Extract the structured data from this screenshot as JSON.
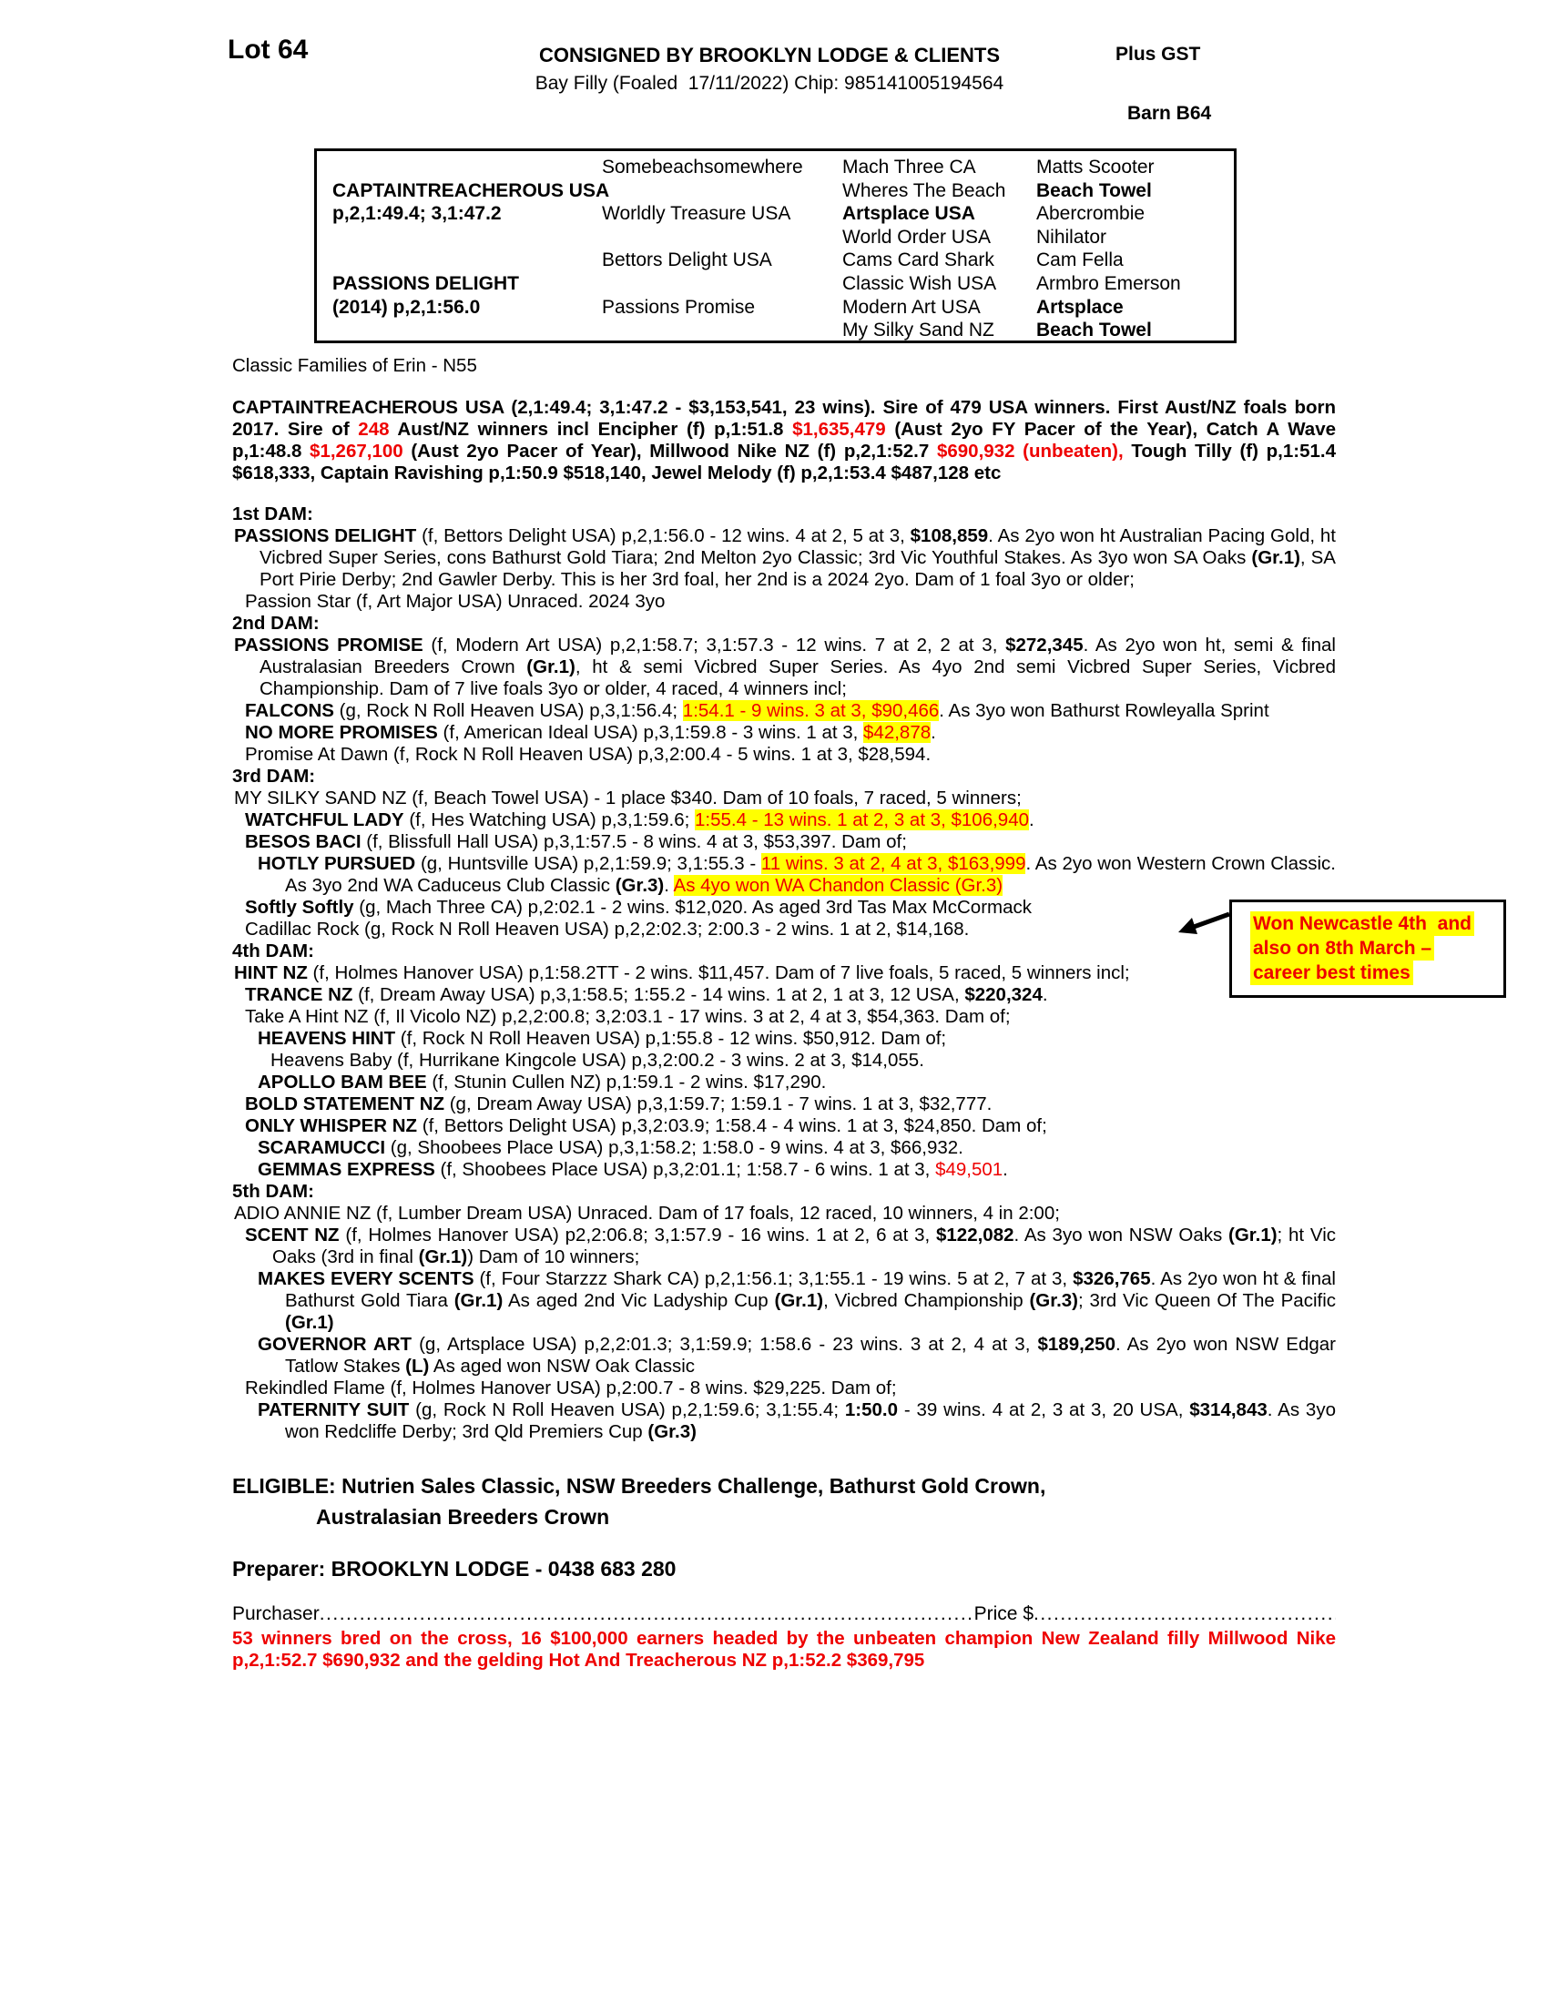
{
  "colors": {
    "red": "#ee0000",
    "highlight": "#ffff00"
  },
  "header": {
    "lot": "Lot 64",
    "consigned": "CONSIGNED BY BROOKLYN LODGE & CLIENTS",
    "plus_gst": "Plus GST",
    "subtitle": "Bay Filly (Foaled  17/11/2022) Chip: 985141005194564",
    "barn": "Barn B64"
  },
  "pedigree": {
    "rows": [
      [
        "",
        "Somebeachsomewhere",
        "Mach Three CA",
        "Matts Scooter"
      ],
      [
        {
          "t": "CAPTAINTREACHEROUS USA",
          "b": true
        },
        "",
        "Wheres The Beach",
        {
          "t": "Beach Towel",
          "b": true
        }
      ],
      [
        {
          "t": "p,2,1:49.4; 3,1:47.2",
          "b": true
        },
        "Worldly Treasure USA",
        {
          "t": "Artsplace USA",
          "b": true
        },
        "Abercrombie"
      ],
      [
        "",
        "",
        "World Order USA",
        "Nihilator"
      ],
      [
        "",
        "Bettors Delight USA",
        "Cams Card Shark",
        "Cam Fella"
      ],
      [
        {
          "t": "PASSIONS DELIGHT",
          "b": true
        },
        "",
        "Classic Wish USA",
        "Armbro Emerson"
      ],
      [
        {
          "t": "(2014) p,2,1:56.0",
          "b": true
        },
        "Passions Promise",
        "Modern Art USA",
        {
          "t": "Artsplace",
          "b": true
        }
      ],
      [
        "",
        "",
        "My Silky Sand NZ",
        {
          "t": "Beach Towel",
          "b": true
        }
      ]
    ]
  },
  "family_line": "Classic Families of Erin - N55",
  "sire_paragraph": [
    "CAPTAINTREACHEROUS USA (2,1:49.4; 3,1:47.2 - $3,153,541, 23 wins). Sire of 479 USA winners. First Aust/NZ foals born 2017. Sire of ",
    {
      "t": "248",
      "s": "rb"
    },
    " Aust/NZ winners incl Encipher (f) p,1:51.8 ",
    {
      "t": "$1,635,479",
      "s": "rb"
    },
    " (Aust 2yo FY Pacer of the Year), Catch A Wave p,1:48.8 ",
    {
      "t": "$1,267,100",
      "s": "rb"
    },
    " (Aust 2yo Pacer of Year), Millwood Nike NZ (f) p,2,1:52.7 ",
    {
      "t": "$690,932 (unbeaten),",
      "s": "rb"
    },
    " Tough Tilly (f) p,1:51.4 $618,333, Captain Ravishing p,1:50.9 $518,140, Jewel Melody (f) p,2,1:53.4 $487,128 etc"
  ],
  "sections": [
    {
      "heading": "1st DAM:",
      "entries": [
        {
          "level": 1,
          "segs": [
            {
              "t": "PASSIONS DELIGHT",
              "s": "b"
            },
            " (f, Bettors Delight USA) p,2,1:56.0 - 12 wins. 4 at 2, 5 at 3, ",
            {
              "t": "$108,859",
              "s": "b"
            },
            ". As 2yo won ht Australian Pacing Gold, ht Vicbred Super Series, cons Bathurst Gold Tiara; 2nd Melton 2yo Classic; 3rd Vic Youthful Stakes. As 3yo won SA Oaks ",
            {
              "t": "(Gr.1)",
              "s": "b"
            },
            ", SA Port Pirie Derby; 2nd Gawler Derby. This is her 3rd foal, her 2nd is a 2024 2yo. Dam of 1 foal 3yo or older;"
          ]
        },
        {
          "level": 2,
          "segs": [
            "Passion Star (f, Art Major USA) Unraced. 2024 3yo"
          ]
        }
      ]
    },
    {
      "heading": "2nd DAM:",
      "entries": [
        {
          "level": 1,
          "segs": [
            {
              "t": "PASSIONS PROMISE",
              "s": "b"
            },
            " (f, Modern Art USA) p,2,1:58.7; 3,1:57.3 - 12 wins. 7 at 2, 2 at 3, ",
            {
              "t": "$272,345",
              "s": "b"
            },
            ". As 2yo won ht, semi & final Australasian Breeders Crown ",
            {
              "t": "(Gr.1)",
              "s": "b"
            },
            ", ht & semi Vicbred Super Series. As 4yo 2nd semi Vicbred Super Series, Vicbred Championship. Dam of 7 live foals 3yo or older, 4 raced, 4 winners incl;"
          ]
        },
        {
          "level": 2,
          "segs": [
            {
              "t": "FALCONS",
              "s": "b"
            },
            " (g, Rock N Roll Heaven USA) p,3,1:56.4; ",
            {
              "t": "1:54.1 - 9 wins. 3 at 3, $90,466",
              "s": "h"
            },
            ". As 3yo won Bathurst Rowleyalla Sprint"
          ]
        },
        {
          "level": 2,
          "segs": [
            {
              "t": "NO MORE PROMISES",
              "s": "b"
            },
            " (f, American Ideal USA) p,3,1:59.8 - 3 wins. 1 at 3, ",
            {
              "t": "$42,878",
              "s": "h"
            },
            "."
          ]
        },
        {
          "level": 2,
          "segs": [
            "Promise At Dawn (f, Rock N Roll Heaven USA) p,3,2:00.4 - 5 wins. 1 at 3, $28,594."
          ]
        }
      ]
    },
    {
      "heading": "3rd DAM:",
      "entries": [
        {
          "level": 1,
          "segs": [
            "MY SILKY SAND NZ (f, Beach Towel USA) - 1 place $340. Dam of 10 foals, 7 raced, 5 winners;"
          ]
        },
        {
          "level": 2,
          "segs": [
            {
              "t": "WATCHFUL LADY",
              "s": "b"
            },
            " (f, Hes Watching USA) p,3,1:59.6; ",
            {
              "t": "1:55.4 - 13 wins. 1 at 2, 3 at 3, $106,940",
              "s": "h"
            },
            "."
          ]
        },
        {
          "level": 2,
          "segs": [
            {
              "t": "BESOS BACI",
              "s": "b"
            },
            " (f, Blissfull Hall USA) p,3,1:57.5 - 8 wins. 4 at 3, $53,397. Dam of;"
          ]
        },
        {
          "level": 3,
          "segs": [
            {
              "t": "HOTLY PURSUED",
              "s": "b"
            },
            " (g, Huntsville USA) p,2,1:59.9; 3,1:55.3 - ",
            {
              "t": "11 wins. 3 at 2, 4 at 3, $163,999",
              "s": "h"
            },
            ". As 2yo won Western Crown Classic. As 3yo 2nd WA Caduceus Club Classic ",
            {
              "t": "(Gr.3)",
              "s": "b"
            },
            ". ",
            {
              "t": "As 4yo won WA Chandon Classic (Gr.3)",
              "s": "h"
            }
          ]
        },
        {
          "level": 2,
          "segs": [
            {
              "t": "Softly Softly",
              "s": "b"
            },
            " (g, Mach Three CA) p,2:02.1 - 2 wins. $12,020. As aged 3rd Tas Max McCormack"
          ]
        },
        {
          "level": 2,
          "segs": [
            "Cadillac Rock (g, Rock N Roll Heaven USA) p,2,2:02.3; 2:00.3 - 2 wins. 1 at 2, $14,168."
          ]
        }
      ]
    },
    {
      "heading": "4th DAM:",
      "entries": [
        {
          "level": 1,
          "segs": [
            {
              "t": "HINT NZ",
              "s": "b"
            },
            " (f, Holmes Hanover USA) p,1:58.2TT - 2 wins. $11,457. Dam of 7 live foals, 5 raced, 5 winners incl;"
          ]
        },
        {
          "level": 2,
          "segs": [
            {
              "t": "TRANCE NZ",
              "s": "b"
            },
            " (f, Dream Away USA) p,3,1:58.5; 1:55.2 - 14 wins. 1 at 2, 1 at 3, 12 USA, ",
            {
              "t": "$220,324",
              "s": "b"
            },
            "."
          ]
        },
        {
          "level": 2,
          "segs": [
            "Take A Hint NZ (f, Il Vicolo NZ) p,2,2:00.8; 3,2:03.1 - 17 wins. 3 at 2, 4 at 3, $54,363. Dam of;"
          ]
        },
        {
          "level": 3,
          "segs": [
            {
              "t": "HEAVENS HINT",
              "s": "b"
            },
            " (f, Rock N Roll Heaven USA) p,1:55.8 - 12 wins. $50,912. Dam of;"
          ]
        },
        {
          "level": 4,
          "segs": [
            "Heavens Baby (f, Hurrikane Kingcole USA) p,3,2:00.2 - 3 wins. 2 at 3, $14,055."
          ]
        },
        {
          "level": 3,
          "segs": [
            {
              "t": "APOLLO BAM BEE",
              "s": "b"
            },
            " (f, Stunin Cullen NZ) p,1:59.1 - 2 wins. $17,290."
          ]
        },
        {
          "level": 2,
          "segs": [
            {
              "t": "BOLD STATEMENT NZ",
              "s": "b"
            },
            " (g, Dream Away USA) p,3,1:59.7; 1:59.1 - 7 wins. 1 at 3, $32,777."
          ]
        },
        {
          "level": 2,
          "segs": [
            {
              "t": "ONLY WHISPER NZ",
              "s": "b"
            },
            " (f, Bettors Delight USA) p,3,2:03.9; 1:58.4 - 4 wins. 1 at 3, $24,850. Dam of;"
          ]
        },
        {
          "level": 3,
          "segs": [
            {
              "t": "SCARAMUCCI",
              "s": "b"
            },
            " (g, Shoobees Place USA) p,3,1:58.2; 1:58.0 - 9 wins. 4 at 3, $66,932."
          ]
        },
        {
          "level": 3,
          "segs": [
            {
              "t": "GEMMAS EXPRESS",
              "s": "b"
            },
            " (f, Shoobees Place USA) p,3,2:01.1; 1:58.7 - 6 wins. 1 at 3, ",
            {
              "t": "$49,501",
              "s": "r"
            },
            "."
          ]
        }
      ]
    },
    {
      "heading": "5th DAM:",
      "entries": [
        {
          "level": 1,
          "segs": [
            "ADIO ANNIE NZ (f, Lumber Dream USA) Unraced. Dam of 17 foals, 12 raced, 10 winners, 4 in 2:00;"
          ]
        },
        {
          "level": 2,
          "segs": [
            {
              "t": "SCENT NZ",
              "s": "b"
            },
            " (f, Holmes Hanover USA) p2,2:06.8; 3,1:57.9 - 16 wins. 1 at 2, 6 at 3, ",
            {
              "t": "$122,082",
              "s": "b"
            },
            ". As 3yo won NSW Oaks ",
            {
              "t": "(Gr.1)",
              "s": "b"
            },
            "; ht Vic Oaks (3rd in final ",
            {
              "t": "(Gr.1)",
              "s": "b"
            },
            ") Dam of 10 winners;"
          ]
        },
        {
          "level": 3,
          "segs": [
            {
              "t": "MAKES EVERY SCENTS",
              "s": "b"
            },
            " (f, Four Starzzz Shark CA) p,2,1:56.1; 3,1:55.1 - 19 wins. 5 at 2, 7 at 3, ",
            {
              "t": "$326,765",
              "s": "b"
            },
            ". As 2yo won ht & final Bathurst Gold Tiara ",
            {
              "t": "(Gr.1)",
              "s": "b"
            },
            " As aged 2nd Vic Ladyship Cup ",
            {
              "t": "(Gr.1)",
              "s": "b"
            },
            ", Vicbred Championship ",
            {
              "t": "(Gr.3)",
              "s": "b"
            },
            "; 3rd Vic Queen Of The Pacific ",
            {
              "t": "(Gr.1)",
              "s": "b"
            }
          ]
        },
        {
          "level": 3,
          "segs": [
            {
              "t": "GOVERNOR ART",
              "s": "b"
            },
            " (g, Artsplace USA) p,2,2:01.3; 3,1:59.9; 1:58.6 - 23 wins. 3 at 2, 4 at 3, ",
            {
              "t": "$189,250",
              "s": "b"
            },
            ". As 2yo won NSW Edgar Tatlow Stakes ",
            {
              "t": "(L)",
              "s": "b"
            },
            " As aged won NSW Oak Classic"
          ]
        },
        {
          "level": 2,
          "segs": [
            "Rekindled Flame (f, Holmes Hanover USA) p,2:00.7 - 8 wins. $29,225. Dam of;"
          ]
        },
        {
          "level": 3,
          "segs": [
            {
              "t": "PATERNITY SUIT",
              "s": "b"
            },
            " (g, Rock N Roll Heaven USA) p,2,1:59.6; 3,1:55.4; ",
            {
              "t": "1:50.0",
              "s": "b"
            },
            " - 39 wins. 4 at 2, 3 at 3, 20 USA, ",
            {
              "t": "$314,843",
              "s": "b"
            },
            ". As 3yo won Redcliffe Derby; 3rd Qld Premiers Cup ",
            {
              "t": "(Gr.3)",
              "s": "b"
            }
          ]
        }
      ]
    }
  ],
  "annotation": {
    "lines": [
      "Won Newcastle 4th  and",
      "also on 8th March –",
      "career best times"
    ]
  },
  "eligible": {
    "line1": "ELIGIBLE: Nutrien Sales Classic, NSW Breeders Challenge, Bathurst Gold Crown,",
    "line2": "Australasian Breeders Crown"
  },
  "preparer": "Preparer: BROOKLYN LODGE - 0438 683 280",
  "purchaser": {
    "label": "Purchaser",
    "leader1": "........................................................................................................................................",
    "price_label": "Price $",
    "leader2": "............................................................................"
  },
  "footer_note": "53 winners bred on the cross, 16 $100,000 earners headed by the unbeaten champion New Zealand filly Millwood Nike p,2,1:52.7 $690,932 and the gelding Hot And Treacherous NZ p,1:52.2 $369,795"
}
